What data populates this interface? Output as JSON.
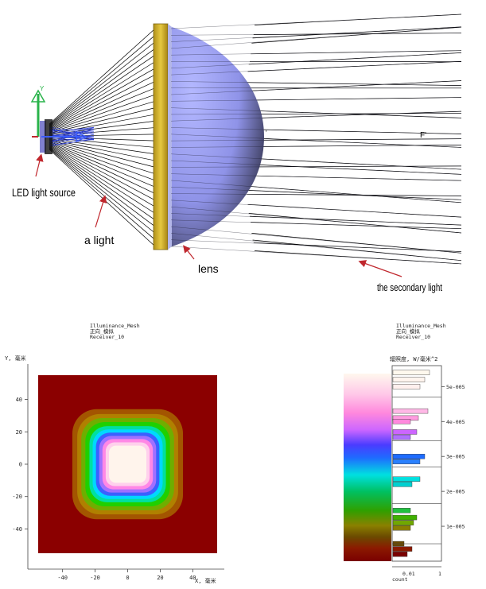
{
  "optics_diagram": {
    "labels": {
      "led": "LED light source",
      "ray": "a light",
      "lens": "lens",
      "secondary": "the secondary light",
      "focus_f": "F'"
    },
    "colors": {
      "lens_body": "#8f93e8",
      "lens_rim": "#d7b62a",
      "rays": "#000000",
      "arrows": "#c0272d",
      "axis_y": "#29b34a",
      "axis_z": "#3b5cff"
    }
  },
  "illuminance_map": {
    "header": [
      "Illuminance_Mesh",
      "正向_模拟",
      "Receiver_10"
    ],
    "ylabel": "Y, 毫米",
    "xlabel": "X, 毫米",
    "xticks": [
      -40,
      -20,
      0,
      20,
      40
    ],
    "yticks": [
      40,
      20,
      0,
      -20,
      -40
    ],
    "xlim": [
      -55,
      55
    ],
    "ylim": [
      -55,
      55
    ],
    "background_color": "#8b0000"
  },
  "colorbar": {
    "header": [
      "Illuminance_Mesh",
      "正向_模拟",
      "Receiver_10"
    ],
    "title": "辐照度, W/毫米^2",
    "ticks": [
      "5e-005",
      "4e-005",
      "3e-005",
      "2e-005",
      "1e-005"
    ],
    "tick_values": [
      5e-05,
      4e-05,
      3e-05,
      2e-05,
      1e-05
    ],
    "range": [
      0,
      5.6e-05
    ],
    "count_label": "count",
    "count_ticks": [
      "0.01",
      "1"
    ]
  },
  "chart_data": {
    "type": "heatmap",
    "xlabel": "X, 毫米",
    "ylabel": "Y, 毫米",
    "xlim": [
      -55,
      55
    ],
    "ylim": [
      -55,
      55
    ],
    "value_label": "辐照度, W/毫米^2",
    "value_range": [
      0,
      5.6e-05
    ],
    "illuminated_region_extent_mm": [
      -34,
      34
    ],
    "uniform_core_extent_mm": [
      -17,
      17
    ]
  }
}
